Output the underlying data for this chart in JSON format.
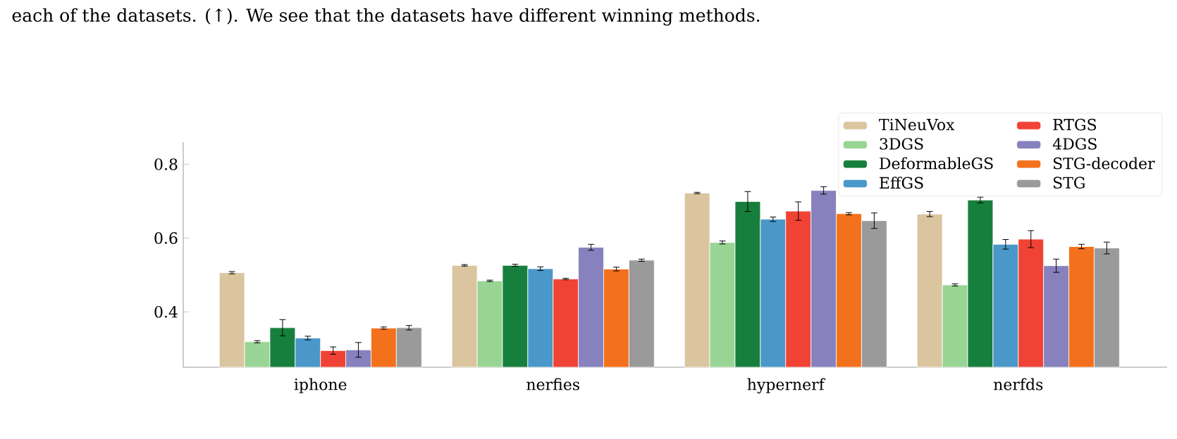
{
  "chart_data": {
    "type": "bar",
    "annotations": [
      "each of the datasets. (↑). We see that the datasets have different winning methods."
    ],
    "categories": [
      "iphone",
      "nerfies",
      "hypernerf",
      "nerfds"
    ],
    "ylim": [
      0.25,
      0.86
    ],
    "yticks": [
      0.4,
      0.6,
      0.8
    ],
    "legend": "top right",
    "series": [
      {
        "name": "TiNeuVox",
        "color": "#dbc59f",
        "values": [
          0.506,
          0.526,
          0.722,
          0.665
        ],
        "errors": [
          0.003,
          0.002,
          0.002,
          0.007
        ]
      },
      {
        "name": "3DGS",
        "color": "#98d594",
        "values": [
          0.319,
          0.484,
          0.588,
          0.473
        ],
        "errors": [
          0.003,
          0.002,
          0.004,
          0.003
        ]
      },
      {
        "name": "DeformableGS",
        "color": "#177f3d",
        "values": [
          0.357,
          0.526,
          0.699,
          0.703
        ],
        "errors": [
          0.022,
          0.003,
          0.027,
          0.008
        ]
      },
      {
        "name": "EffGS",
        "color": "#4a98c9",
        "values": [
          0.329,
          0.517,
          0.651,
          0.583
        ],
        "errors": [
          0.005,
          0.005,
          0.006,
          0.013
        ]
      },
      {
        "name": "RTGS",
        "color": "#f04335",
        "values": [
          0.295,
          0.489,
          0.673,
          0.597
        ],
        "errors": [
          0.01,
          0.002,
          0.025,
          0.023
        ]
      },
      {
        "name": "4DGS",
        "color": "#8782bd",
        "values": [
          0.297,
          0.575,
          0.729,
          0.525
        ],
        "errors": [
          0.02,
          0.008,
          0.01,
          0.018
        ]
      },
      {
        "name": "STG-decoder",
        "color": "#f3711c",
        "values": [
          0.356,
          0.516,
          0.666,
          0.577
        ],
        "errors": [
          0.003,
          0.005,
          0.003,
          0.006
        ]
      },
      {
        "name": "STG",
        "color": "#9a9a9a",
        "values": [
          0.357,
          0.54,
          0.647,
          0.573
        ],
        "errors": [
          0.006,
          0.003,
          0.021,
          0.016
        ]
      }
    ]
  }
}
